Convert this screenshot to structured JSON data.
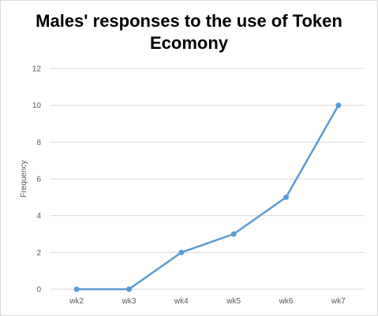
{
  "chart_data": {
    "type": "line",
    "title": "Males' responses to the use of Token Ecomony",
    "xlabel": "",
    "ylabel": "Frequency",
    "categories": [
      "wk2",
      "wk3",
      "wk4",
      "wk5",
      "wk6",
      "wk7"
    ],
    "series": [
      {
        "values": [
          0,
          0,
          2,
          3,
          5,
          10
        ],
        "color": "#5b9bd5"
      }
    ],
    "ylim": [
      0,
      12
    ],
    "yticks": [
      0,
      2,
      4,
      6,
      8,
      10,
      12
    ],
    "grid": true,
    "legend": "none"
  }
}
